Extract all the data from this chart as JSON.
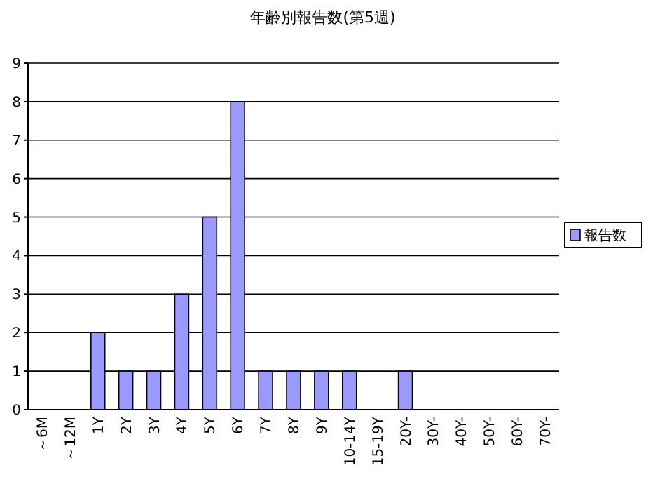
{
  "chart_data": {
    "type": "bar",
    "title": "年齢別報告数(第5週)",
    "categories": [
      "～6M",
      "～12M",
      "1Y",
      "2Y",
      "3Y",
      "4Y",
      "5Y",
      "6Y",
      "7Y",
      "8Y",
      "9Y",
      "10-14Y",
      "15-19Y",
      "20Y-",
      "30Y-",
      "40Y-",
      "50Y-",
      "60Y-",
      "70Y-"
    ],
    "series": [
      {
        "name": "報告数",
        "color": "#9999ff",
        "values": [
          0,
          0,
          2,
          1,
          1,
          3,
          5,
          8,
          1,
          1,
          1,
          1,
          0,
          1,
          0,
          0,
          0,
          0,
          0
        ]
      }
    ],
    "ylim": [
      0,
      9
    ],
    "yticks": [
      0,
      1,
      2,
      3,
      4,
      5,
      6,
      7,
      8,
      9
    ],
    "grid": "y",
    "legend": "right"
  }
}
